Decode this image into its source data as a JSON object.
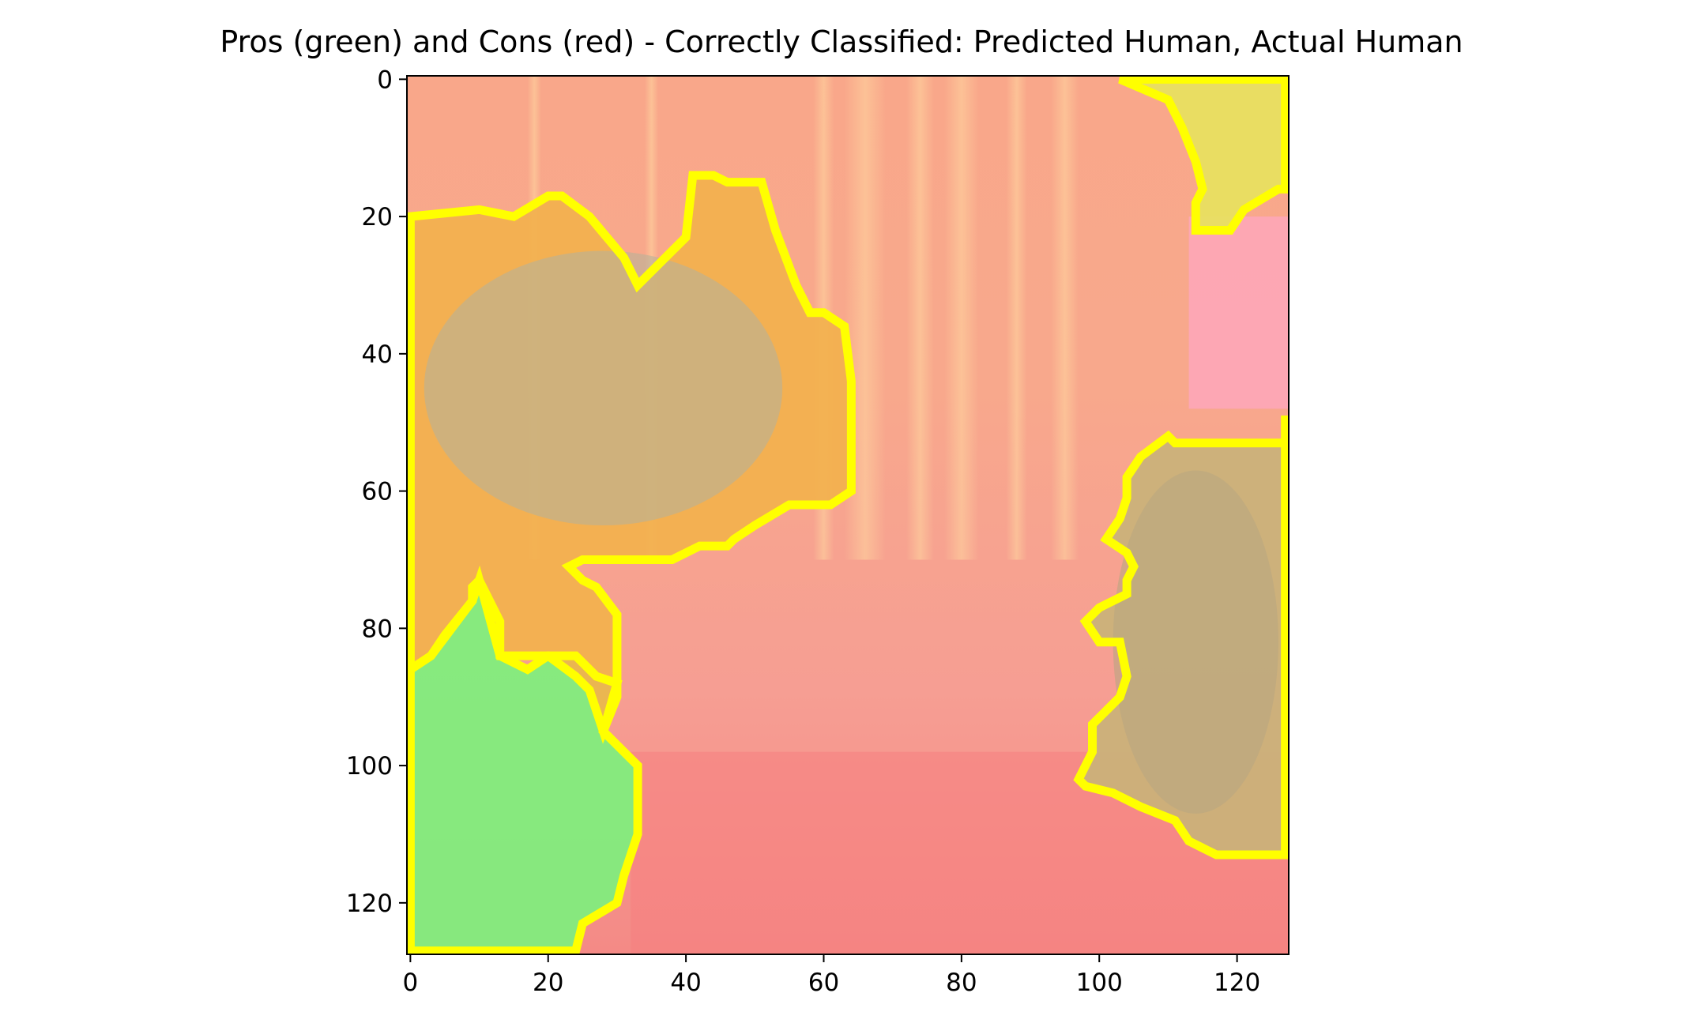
{
  "chart_data": {
    "type": "heatmap",
    "title": "Pros (green) and Cons (red) - Correctly Classified: Predicted Human, Actual Human",
    "xlabel": "",
    "ylabel": "",
    "xlim": [
      -0.5,
      127.5
    ],
    "ylim": [
      127.5,
      -0.5
    ],
    "xticks": [
      0,
      20,
      40,
      60,
      80,
      100,
      120
    ],
    "yticks": [
      0,
      20,
      40,
      60,
      80,
      100,
      120
    ],
    "grid": false,
    "image_size": [
      128,
      128
    ],
    "regions": [
      {
        "label": "Pros (green)",
        "color": "#7df07d",
        "outline": [
          [
            0,
            86
          ],
          [
            3,
            84
          ],
          [
            5,
            81
          ],
          [
            9,
            76
          ],
          [
            9,
            74
          ],
          [
            10,
            73
          ],
          [
            13,
            79
          ],
          [
            13,
            84
          ],
          [
            17,
            86
          ],
          [
            20,
            84
          ],
          [
            24,
            84
          ],
          [
            27,
            87
          ],
          [
            30,
            88
          ],
          [
            28,
            95
          ],
          [
            33,
            100
          ],
          [
            33,
            110
          ],
          [
            31,
            116
          ],
          [
            30,
            120
          ],
          [
            25,
            123
          ],
          [
            24,
            127
          ],
          [
            0,
            127
          ]
        ]
      },
      {
        "label": "Cons (red) segment",
        "color": "#f2b14d",
        "outline": [
          [
            0,
            20
          ],
          [
            10,
            19
          ],
          [
            15,
            20
          ],
          [
            20,
            17
          ],
          [
            22,
            17
          ],
          [
            26,
            20
          ],
          [
            31,
            26
          ],
          [
            33,
            30
          ],
          [
            36,
            27
          ],
          [
            40,
            23
          ],
          [
            41,
            14
          ],
          [
            44,
            14
          ],
          [
            46,
            15
          ],
          [
            51,
            15
          ],
          [
            53,
            22
          ],
          [
            56,
            30
          ],
          [
            58,
            34
          ],
          [
            60,
            34
          ],
          [
            63,
            36
          ],
          [
            64,
            44
          ],
          [
            64,
            60
          ],
          [
            61,
            62
          ],
          [
            55,
            62
          ],
          [
            50,
            65
          ],
          [
            47,
            67
          ],
          [
            46,
            68
          ],
          [
            42,
            68
          ],
          [
            38,
            70
          ],
          [
            25,
            70
          ],
          [
            23,
            71
          ],
          [
            25,
            73
          ],
          [
            27,
            74
          ],
          [
            30,
            78
          ],
          [
            30,
            90
          ],
          [
            28,
            95
          ],
          [
            26,
            89
          ],
          [
            24,
            87
          ],
          [
            20,
            84
          ],
          [
            13,
            84
          ],
          [
            10,
            73
          ],
          [
            9,
            76
          ],
          [
            3,
            84
          ],
          [
            0,
            86
          ]
        ]
      },
      {
        "label": "Cons (red) segment",
        "color": "#e7e25e",
        "outline": [
          [
            103,
            0
          ],
          [
            110,
            3
          ],
          [
            112,
            7
          ],
          [
            114,
            12
          ],
          [
            115,
            16
          ],
          [
            114,
            18
          ],
          [
            114,
            22
          ],
          [
            119,
            22
          ],
          [
            121,
            19
          ],
          [
            126,
            16
          ],
          [
            127,
            16
          ],
          [
            127,
            0
          ]
        ]
      },
      {
        "label": "Cons (red) segment",
        "color": "#c9b27a",
        "outline": [
          [
            127,
            49
          ],
          [
            127,
            53
          ],
          [
            111,
            53
          ],
          [
            110,
            52
          ],
          [
            106,
            55
          ],
          [
            104,
            58
          ],
          [
            104,
            61
          ],
          [
            103,
            64
          ],
          [
            101,
            67
          ],
          [
            104,
            69
          ],
          [
            105,
            71
          ],
          [
            104,
            73
          ],
          [
            104,
            75
          ],
          [
            100,
            77
          ],
          [
            98,
            79
          ],
          [
            100,
            82
          ],
          [
            103,
            82
          ],
          [
            104,
            87
          ],
          [
            103,
            90
          ],
          [
            101,
            92
          ],
          [
            99,
            94
          ],
          [
            99,
            98
          ],
          [
            98,
            100
          ],
          [
            97,
            102
          ],
          [
            98,
            103
          ],
          [
            102,
            104
          ],
          [
            106,
            106
          ],
          [
            111,
            108
          ],
          [
            113,
            111
          ],
          [
            117,
            113
          ],
          [
            120,
            113
          ],
          [
            127,
            113
          ]
        ]
      }
    ]
  }
}
